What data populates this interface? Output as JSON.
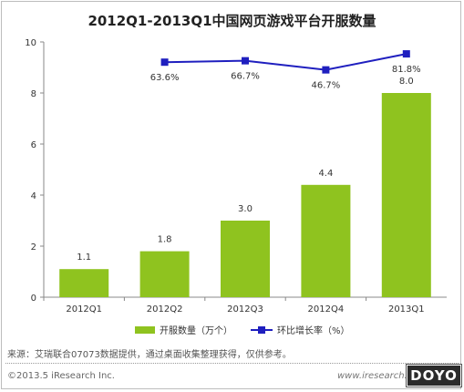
{
  "title": "2012Q1-2013Q1中国网页游戏平台开服数量",
  "chart_data": {
    "type": "bar",
    "categories": [
      "2012Q1",
      "2012Q2",
      "2012Q3",
      "2012Q4",
      "2013Q1"
    ],
    "series": [
      {
        "name": "开服数量（万个）",
        "type": "bar",
        "values": [
          1.1,
          1.8,
          3.0,
          4.4,
          8.0
        ],
        "labels": [
          "1.1",
          "1.8",
          "3.0",
          "4.4",
          "8.0"
        ],
        "color": "#8fc31f"
      },
      {
        "name": "环比增长率（%）",
        "type": "line",
        "values": [
          null,
          63.6,
          66.7,
          46.7,
          81.8
        ],
        "labels": [
          null,
          "63.6%",
          "66.7%",
          "46.7%",
          "81.8%"
        ],
        "color": "#1f1fbf"
      }
    ],
    "ylim": [
      0,
      10
    ],
    "yticks": [
      "0",
      "2",
      "4",
      "6",
      "8",
      "10"
    ],
    "grid": false,
    "legend": "bottom"
  },
  "source": "来源：艾瑞联合07073数据提供，通过桌面收集整理获得，仅供参考。",
  "copyright": "©2013.5 iResearch Inc.",
  "site": "www.iresearch.com.cn",
  "badge": "DOYO"
}
